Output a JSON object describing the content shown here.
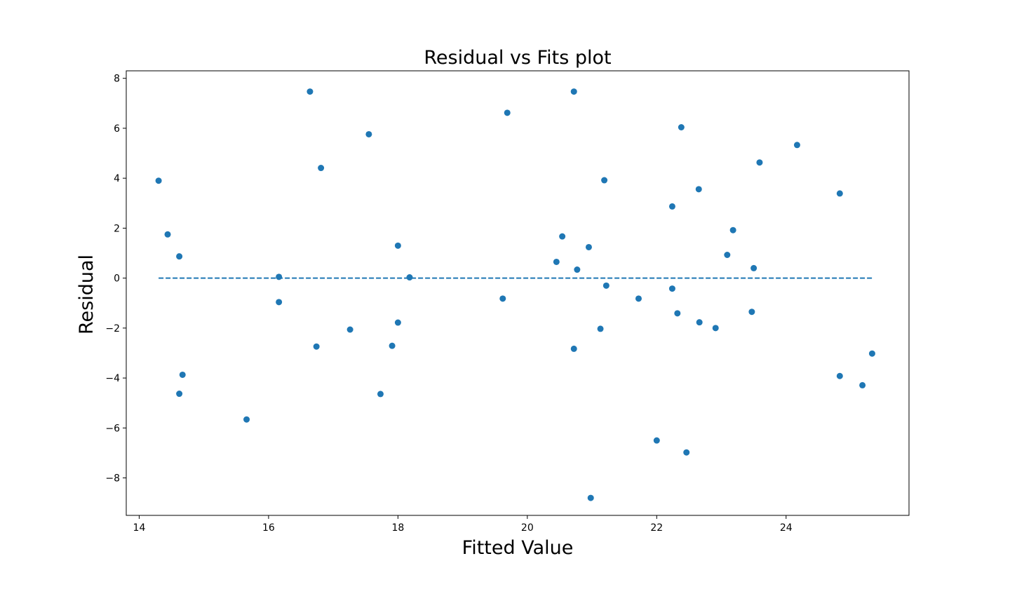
{
  "chart_data": {
    "type": "scatter",
    "title": "Residual vs Fits plot",
    "xlabel": "Fitted Value",
    "ylabel": "Residual",
    "xlim": [
      13.8,
      25.9
    ],
    "ylim": [
      -9.5,
      8.3
    ],
    "xticks": [
      14,
      16,
      18,
      20,
      22,
      24
    ],
    "xtick_labels": [
      "14",
      "16",
      "18",
      "20",
      "22",
      "24"
    ],
    "yticks": [
      -8,
      -6,
      -4,
      -2,
      0,
      2,
      4,
      6,
      8
    ],
    "ytick_labels": [
      "−8",
      "−6",
      "−4",
      "−2",
      "0",
      "2",
      "4",
      "6",
      "8"
    ],
    "grid": false,
    "point_color": "#1f77b4",
    "reference_line": {
      "y": 0,
      "x_start": 14.3,
      "x_end": 25.33,
      "style": "dashed",
      "color": "#1f77b4"
    },
    "points": [
      {
        "x": 14.3,
        "y": 3.9
      },
      {
        "x": 14.44,
        "y": 1.75
      },
      {
        "x": 14.62,
        "y": 0.87
      },
      {
        "x": 14.67,
        "y": -3.87
      },
      {
        "x": 14.62,
        "y": -4.63
      },
      {
        "x": 15.66,
        "y": -5.66
      },
      {
        "x": 16.16,
        "y": 0.05
      },
      {
        "x": 16.16,
        "y": -0.96
      },
      {
        "x": 16.64,
        "y": 7.47
      },
      {
        "x": 16.81,
        "y": 4.41
      },
      {
        "x": 16.74,
        "y": -2.74
      },
      {
        "x": 17.26,
        "y": -2.06
      },
      {
        "x": 17.55,
        "y": 5.76
      },
      {
        "x": 17.73,
        "y": -4.64
      },
      {
        "x": 17.91,
        "y": -2.71
      },
      {
        "x": 18.0,
        "y": 1.3
      },
      {
        "x": 18.0,
        "y": -1.78
      },
      {
        "x": 18.18,
        "y": 0.03
      },
      {
        "x": 19.62,
        "y": -0.82
      },
      {
        "x": 19.69,
        "y": 6.62
      },
      {
        "x": 20.45,
        "y": 0.65
      },
      {
        "x": 20.54,
        "y": 1.67
      },
      {
        "x": 20.72,
        "y": 7.47
      },
      {
        "x": 20.72,
        "y": -2.83
      },
      {
        "x": 20.77,
        "y": 0.34
      },
      {
        "x": 20.95,
        "y": 1.24
      },
      {
        "x": 20.98,
        "y": -8.8
      },
      {
        "x": 21.13,
        "y": -2.03
      },
      {
        "x": 21.19,
        "y": 3.92
      },
      {
        "x": 21.22,
        "y": -0.3
      },
      {
        "x": 21.72,
        "y": -0.82
      },
      {
        "x": 22.0,
        "y": -6.5
      },
      {
        "x": 22.24,
        "y": 2.87
      },
      {
        "x": 22.24,
        "y": -0.42
      },
      {
        "x": 22.32,
        "y": -1.41
      },
      {
        "x": 22.38,
        "y": 6.04
      },
      {
        "x": 22.46,
        "y": -6.98
      },
      {
        "x": 22.65,
        "y": 3.56
      },
      {
        "x": 22.66,
        "y": -1.77
      },
      {
        "x": 22.91,
        "y": -2.0
      },
      {
        "x": 23.09,
        "y": 0.93
      },
      {
        "x": 23.18,
        "y": 1.92
      },
      {
        "x": 23.47,
        "y": -1.35
      },
      {
        "x": 23.5,
        "y": 0.4
      },
      {
        "x": 23.59,
        "y": 4.63
      },
      {
        "x": 24.17,
        "y": 5.33
      },
      {
        "x": 24.83,
        "y": 3.39
      },
      {
        "x": 24.83,
        "y": -3.92
      },
      {
        "x": 25.18,
        "y": -4.29
      },
      {
        "x": 25.33,
        "y": -3.02
      }
    ]
  }
}
